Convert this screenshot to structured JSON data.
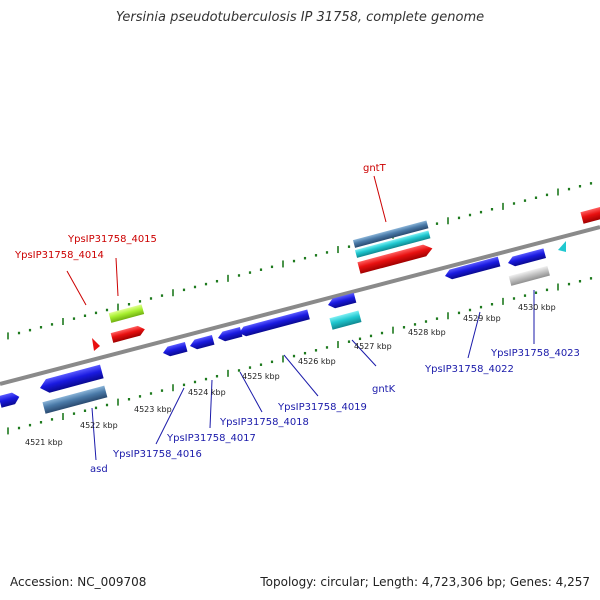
{
  "title": "Yersinia pseudotuberculosis IP 31758, complete genome",
  "footer": {
    "accession": "Accession: NC_009708",
    "summary": "Topology: circular; Length: 4,723,306 bp; Genes: 4,257"
  },
  "colors": {
    "backbone": "#8a8a8a",
    "ruler_tick": "#1e7a1e",
    "label_red": "#cc0000",
    "label_blue": "#1a1aaa",
    "gene_blue": "#1a1ae0",
    "gene_red": "#e81010",
    "gene_cyan": "#20c8d0",
    "gene_steel": "#4a7aa8",
    "gene_lime": "#a8f030",
    "gene_gray": "#c4c4c4"
  },
  "ruler_labels": [
    "4521 kbp",
    "4522 kbp",
    "4523 kbp",
    "4524 kbp",
    "4525 kbp",
    "4526 kbp",
    "4527 kbp",
    "4528 kbp",
    "4529 kbp",
    "4530 kbp"
  ],
  "gene_labels": [
    {
      "text": "YpsIP31758_4015",
      "strand": "forward"
    },
    {
      "text": "YpsIP31758_4014",
      "strand": "forward"
    },
    {
      "text": "gntT",
      "strand": "forward"
    },
    {
      "text": "gntK",
      "strand": "reverse"
    },
    {
      "text": "YpsIP31758_4019",
      "strand": "reverse"
    },
    {
      "text": "YpsIP31758_4018",
      "strand": "reverse"
    },
    {
      "text": "YpsIP31758_4017",
      "strand": "reverse"
    },
    {
      "text": "YpsIP31758_4016",
      "strand": "reverse"
    },
    {
      "text": "asd",
      "strand": "reverse"
    },
    {
      "text": "YpsIP31758_4022",
      "strand": "reverse"
    },
    {
      "text": "YpsIP31758_4023",
      "strand": "reverse"
    }
  ]
}
